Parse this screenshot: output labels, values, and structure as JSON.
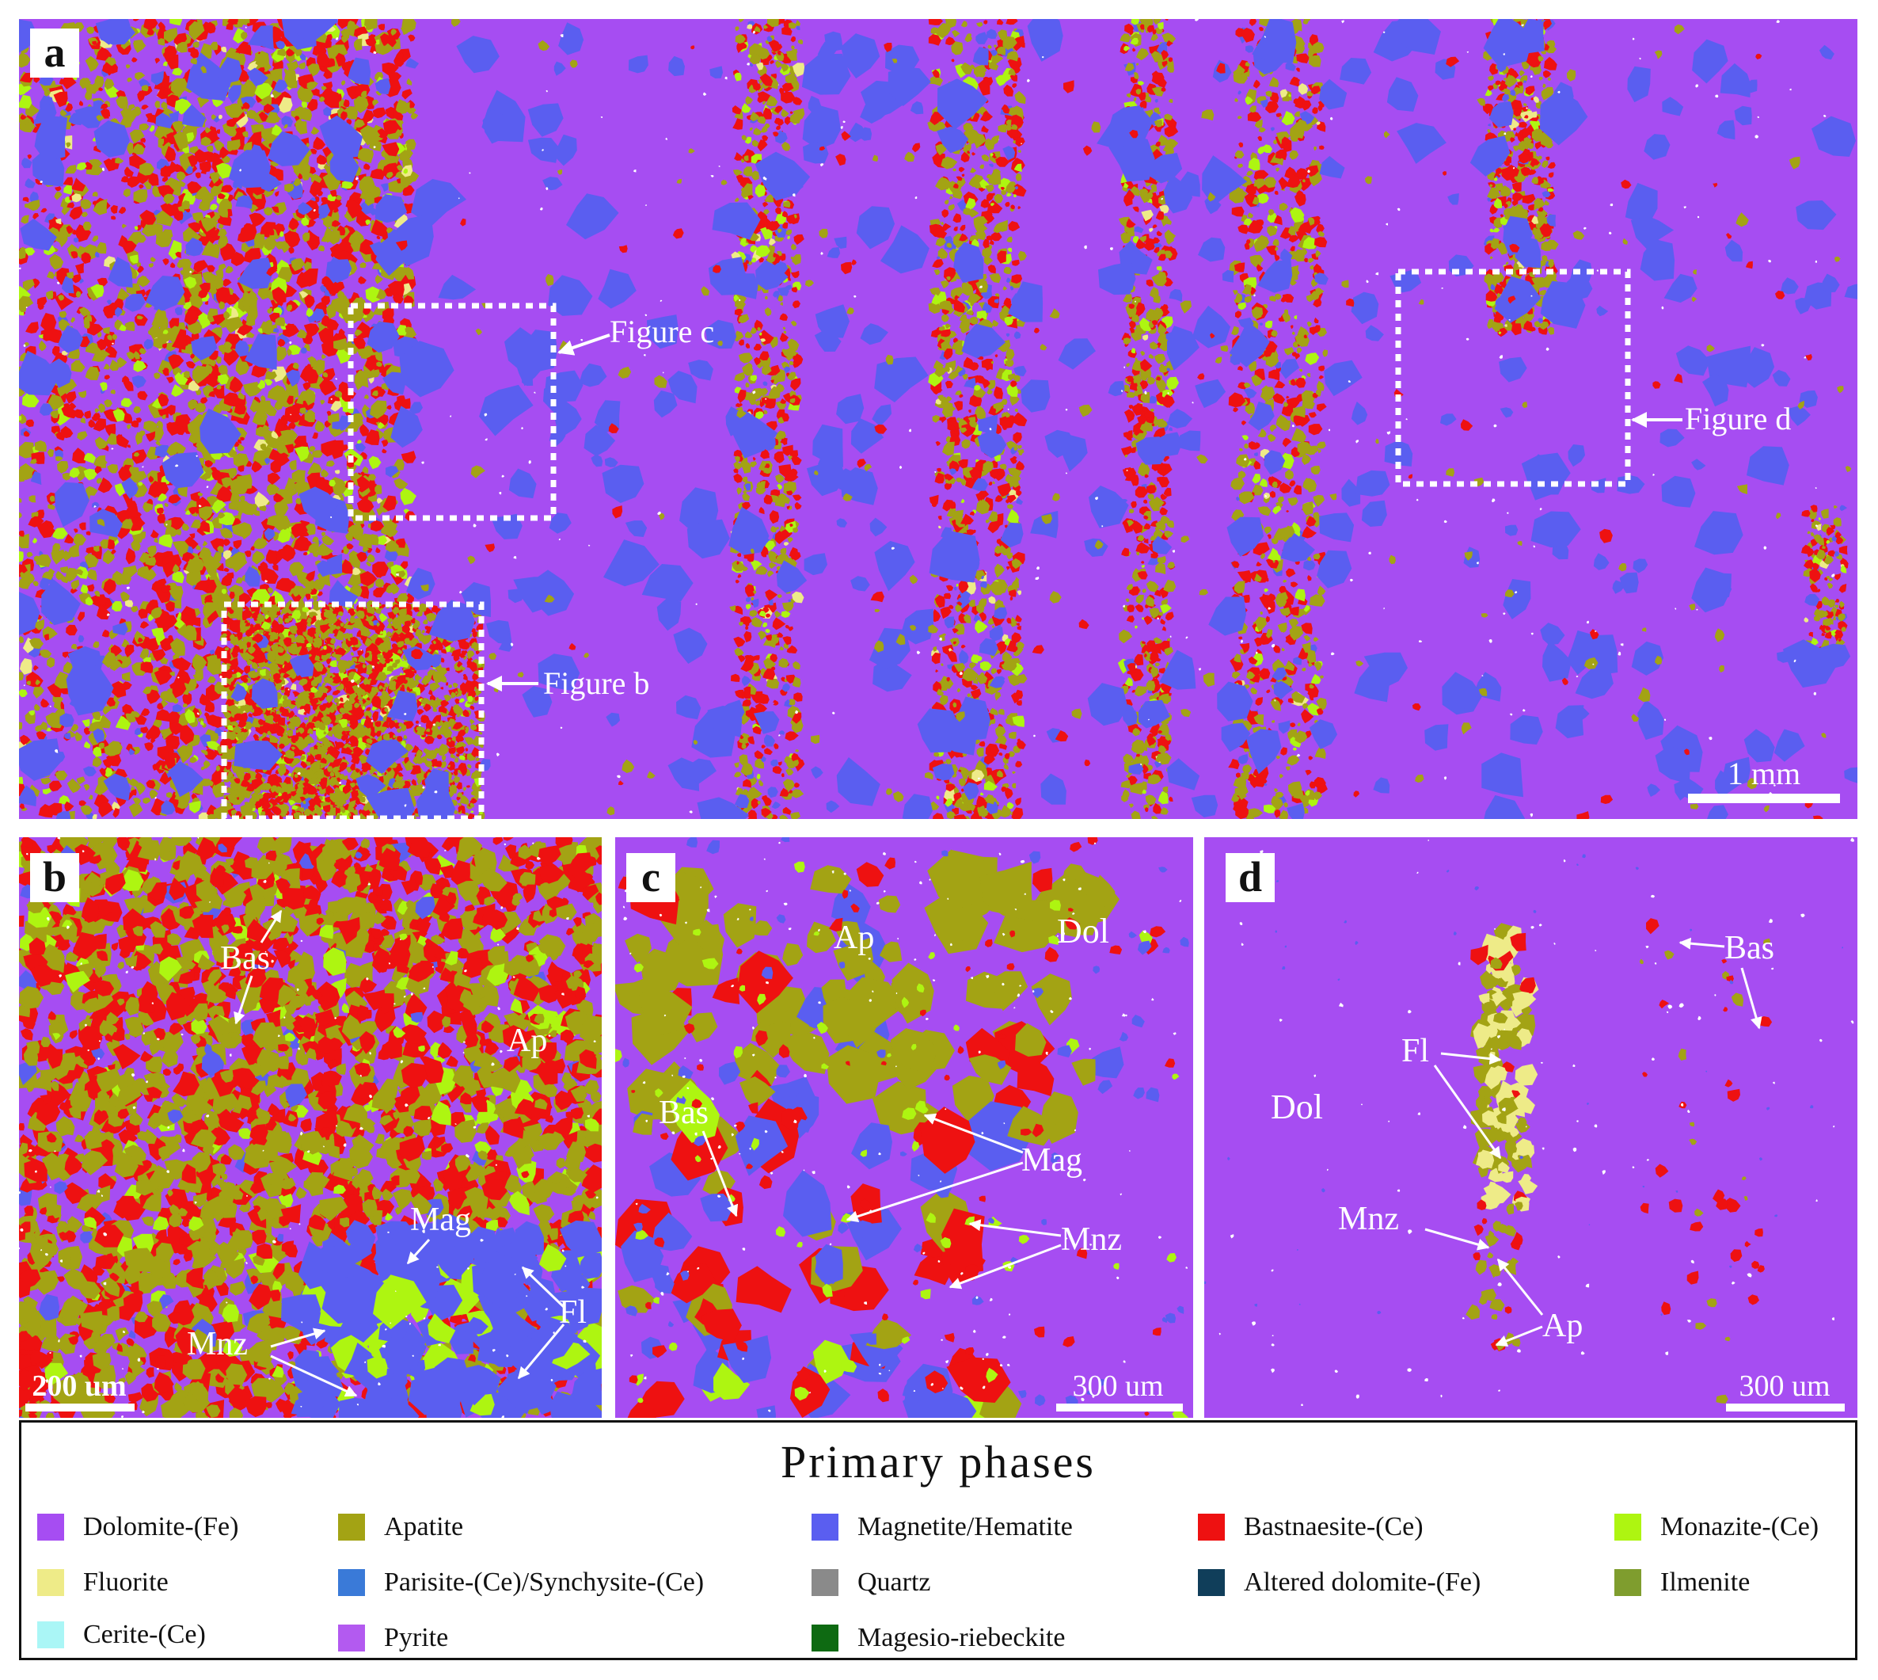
{
  "panels": {
    "a": {
      "letter": "a",
      "scale_label": "1 mm",
      "callouts": [
        "Figure c",
        "Figure d",
        "Figure b"
      ]
    },
    "b": {
      "letter": "b",
      "scale_label": "200 um",
      "labels": [
        "Bas",
        "Ap",
        "Mag",
        "Mnz",
        "Fl"
      ]
    },
    "c": {
      "letter": "c",
      "scale_label": "300 um",
      "labels": [
        "Dol",
        "Ap",
        "Bas",
        "Mag",
        "Mnz"
      ]
    },
    "d": {
      "letter": "d",
      "scale_label": "300 um",
      "labels": [
        "Bas",
        "Fl",
        "Dol",
        "Mnz",
        "Ap"
      ]
    }
  },
  "legend": {
    "title": "Primary   phases",
    "items": [
      {
        "label": "Dolomite-(Fe)",
        "color": "#a64df2"
      },
      {
        "label": "Apatite",
        "color": "#a3a314"
      },
      {
        "label": "Magnetite/Hematite",
        "color": "#5a5ef0"
      },
      {
        "label": "Bastnaesite-(Ce)",
        "color": "#ee1111"
      },
      {
        "label": "Monazite-(Ce)",
        "color": "#aef511"
      },
      {
        "label": "Fluorite",
        "color": "#eeeb88"
      },
      {
        "label": "Parisite-(Ce)/Synchysite-(Ce)",
        "color": "#3a7ad8"
      },
      {
        "label": "Quartz",
        "color": "#8a8a8a"
      },
      {
        "label": "Altered dolomite-(Fe)",
        "color": "#103e5a"
      },
      {
        "label": "Ilmenite",
        "color": "#7f9d2e"
      },
      {
        "label": "Cerite-(Ce)",
        "color": "#aaf6f6"
      },
      {
        "label": "Pyrite",
        "color": "#b35af0"
      },
      {
        "label": "Magesio-riebeckite",
        "color": "#0e6a12"
      }
    ]
  }
}
